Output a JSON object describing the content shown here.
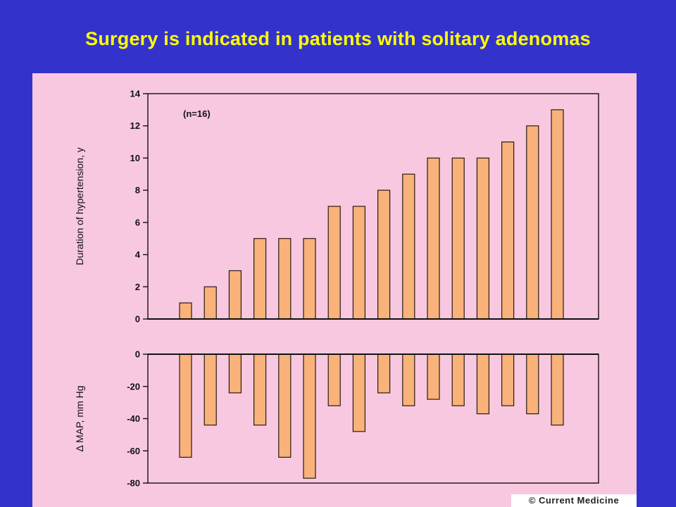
{
  "slide": {
    "title": "Surgery is indicated in patients with solitary adenomas",
    "credit": "© Current Medicine"
  },
  "colors": {
    "background": "#3333cc",
    "title": "#ffff00",
    "panel": "#f8c8e0",
    "bar_fill": "#f8b27a",
    "bar_stroke": "#2a1a10"
  },
  "chart_data": [
    {
      "type": "bar",
      "title": "",
      "ylabel": "Duration of hypertension, y",
      "xlabel": "",
      "annotation": "(n=16)",
      "ylim": [
        0,
        14
      ],
      "yticks": [
        0,
        2,
        4,
        6,
        8,
        10,
        12,
        14
      ],
      "values": [
        1,
        2,
        3,
        5,
        5,
        5,
        7,
        7,
        8,
        9,
        10,
        10,
        10,
        11,
        12,
        13
      ]
    },
    {
      "type": "bar",
      "title": "",
      "ylabel": "Δ MAP, mm Hg",
      "xlabel": "",
      "ylim": [
        -80,
        0
      ],
      "yticks": [
        0,
        -20,
        -40,
        -60,
        -80
      ],
      "values": [
        -64,
        -44,
        -24,
        -44,
        -64,
        -77,
        -32,
        -48,
        -24,
        -32,
        -28,
        -32,
        -37,
        -32,
        -37,
        -44
      ]
    }
  ]
}
